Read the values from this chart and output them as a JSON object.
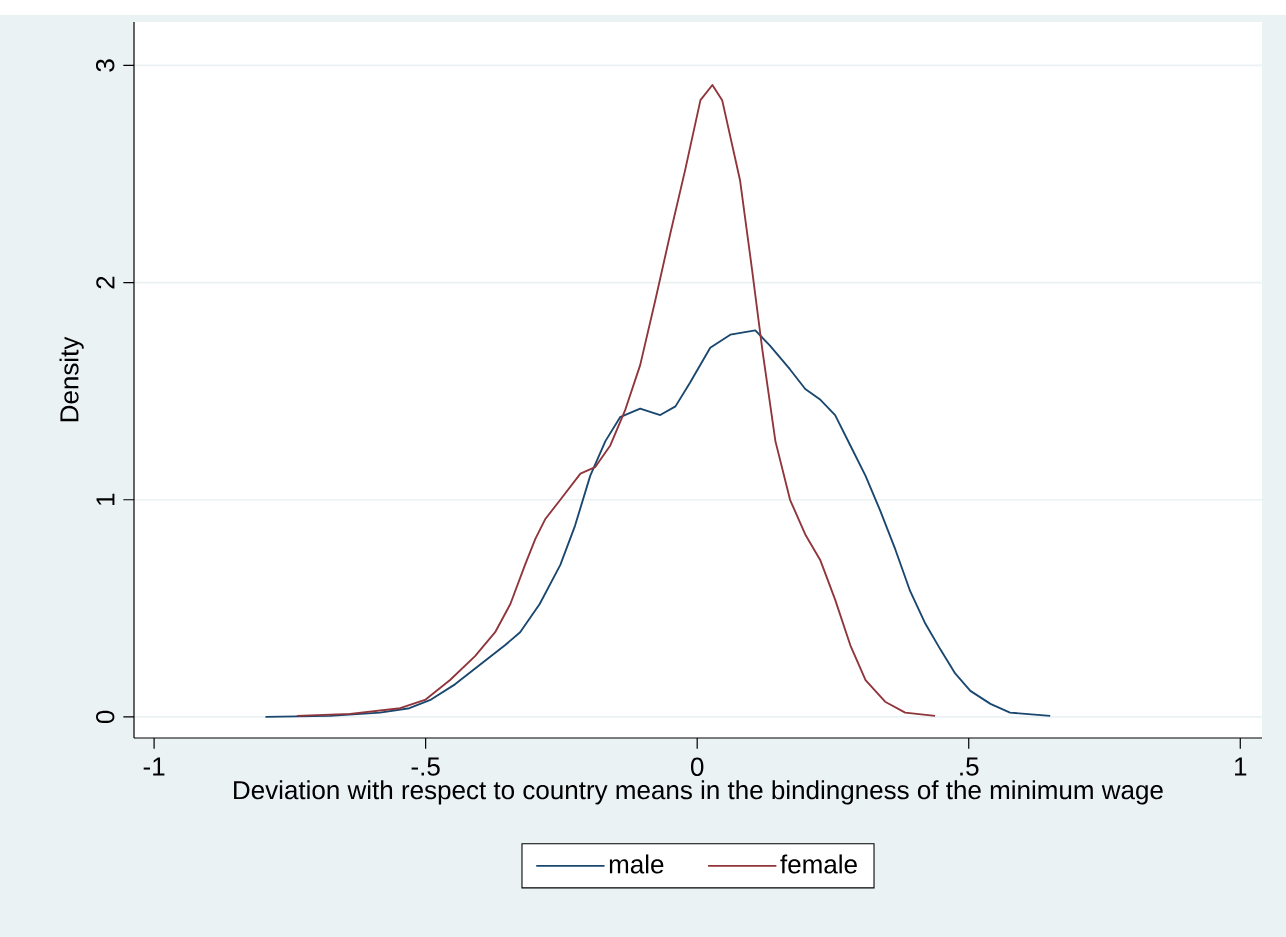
{
  "chart_data": {
    "type": "line",
    "xlabel": "Deviation with respect to country means in the bindingness of the minimum wage",
    "ylabel": "Density",
    "xlim": [
      -1.037,
      1.04
    ],
    "ylim": [
      -0.097,
      3.2
    ],
    "xticks": [
      {
        "value": -1,
        "label": "-1"
      },
      {
        "value": -0.5,
        "label": "-.5"
      },
      {
        "value": 0,
        "label": "0"
      },
      {
        "value": 0.5,
        "label": ".5"
      },
      {
        "value": 1,
        "label": "1"
      }
    ],
    "yticks": [
      0,
      1,
      2,
      3
    ],
    "grid": "y",
    "legend": "bottom",
    "series": [
      {
        "name": "male",
        "color": "#1a476f",
        "x": [
          -0.795,
          -0.676,
          -0.584,
          -0.53,
          -0.49,
          -0.446,
          -0.4,
          -0.354,
          -0.326,
          -0.29,
          -0.252,
          -0.225,
          -0.197,
          -0.169,
          -0.142,
          -0.105,
          -0.068,
          -0.04,
          -0.013,
          0.024,
          0.061,
          0.107,
          0.134,
          0.171,
          0.199,
          0.227,
          0.254,
          0.282,
          0.31,
          0.337,
          0.365,
          0.392,
          0.42,
          0.448,
          0.475,
          0.503,
          0.54,
          0.576,
          0.65
        ],
        "values": [
          0,
          0.005,
          0.02,
          0.04,
          0.08,
          0.15,
          0.24,
          0.33,
          0.39,
          0.52,
          0.7,
          0.88,
          1.11,
          1.27,
          1.38,
          1.42,
          1.39,
          1.43,
          1.54,
          1.7,
          1.76,
          1.78,
          1.71,
          1.6,
          1.51,
          1.46,
          1.39,
          1.25,
          1.11,
          0.95,
          0.77,
          0.58,
          0.43,
          0.31,
          0.2,
          0.12,
          0.06,
          0.02,
          0.005
        ]
      },
      {
        "name": "female",
        "color": "#90353b",
        "x": [
          -0.737,
          -0.639,
          -0.547,
          -0.5,
          -0.455,
          -0.409,
          -0.372,
          -0.344,
          -0.317,
          -0.298,
          -0.28,
          -0.252,
          -0.215,
          -0.188,
          -0.16,
          -0.133,
          -0.105,
          -0.077,
          -0.05,
          -0.022,
          0.006,
          0.028,
          0.046,
          0.079,
          0.101,
          0.12,
          0.144,
          0.171,
          0.199,
          0.227,
          0.254,
          0.282,
          0.31,
          0.346,
          0.383,
          0.438
        ],
        "values": [
          0.005,
          0.014,
          0.04,
          0.08,
          0.17,
          0.28,
          0.39,
          0.52,
          0.7,
          0.82,
          0.91,
          1.0,
          1.12,
          1.15,
          1.25,
          1.41,
          1.62,
          1.92,
          2.22,
          2.52,
          2.84,
          2.91,
          2.84,
          2.47,
          2.06,
          1.69,
          1.27,
          1.0,
          0.84,
          0.72,
          0.54,
          0.33,
          0.17,
          0.07,
          0.02,
          0.005
        ]
      }
    ]
  }
}
